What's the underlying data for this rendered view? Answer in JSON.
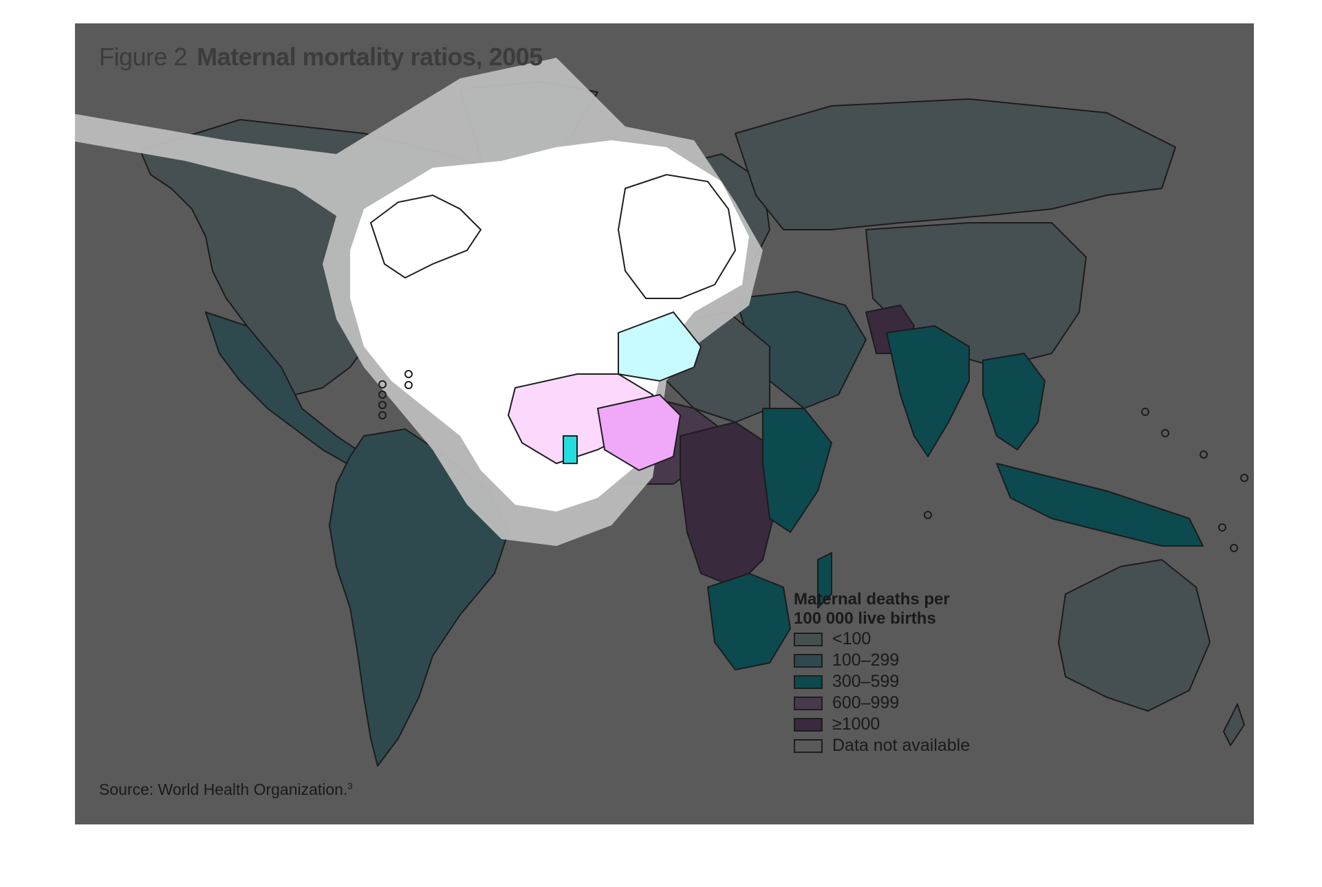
{
  "figure": {
    "label": "Figure 2",
    "title": "Maternal mortality ratios, 2005"
  },
  "legend": {
    "title": "Maternal deaths per\n100 000 live births",
    "items": [
      {
        "label": "<100",
        "color": "#464f52"
      },
      {
        "label": "100–299",
        "color": "#2f4a4f"
      },
      {
        "label": "300–599",
        "color": "#0c4a4f"
      },
      {
        "label": "600–999",
        "color": "#473a4d"
      },
      {
        "label": "≥1000",
        "color": "#3a2a3e"
      },
      {
        "label": "Data not available",
        "color": "#5a5a5a"
      }
    ]
  },
  "source": {
    "text": "Source: World Health Organization.",
    "note": "3"
  },
  "colors": {
    "background": "#5a5a5a",
    "overlay_white": "#ffffff",
    "overlay_ring": "#bdbdbd",
    "overlay_tint": "#8ea3a8",
    "highlight_cyan": "#c8fbff",
    "highlight_pink": "#fcd8fc",
    "highlight_magenta": "#f0a8f8",
    "highlight_ghana": "#22dede"
  }
}
